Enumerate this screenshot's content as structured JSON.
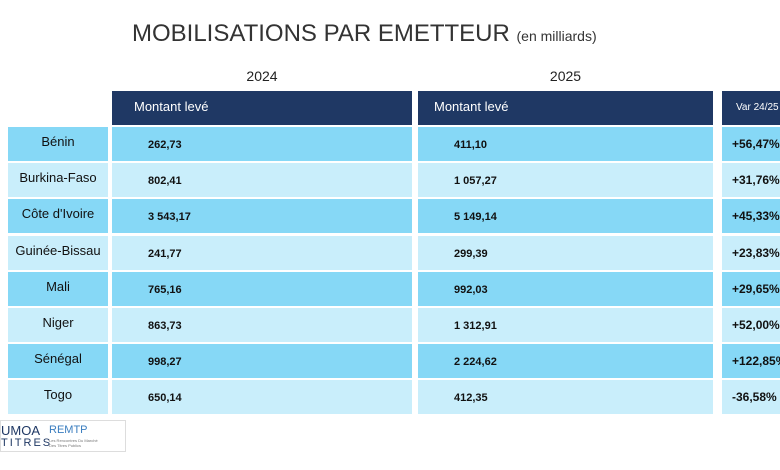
{
  "header": {
    "title": "MOBILISATIONS PAR EMETTEUR",
    "unit": "(en milliards)"
  },
  "table": {
    "years": [
      "2024",
      "2025"
    ],
    "columns": [
      "Montant levé",
      "Montant levé",
      "Var 24/25"
    ],
    "rows": [
      [
        "Bénin",
        "262,73",
        "411,10",
        "+56,47%"
      ],
      [
        "Burkina-Faso",
        "802,41",
        "1 057,27",
        "+31,76%"
      ],
      [
        "Côte d'Ivoire",
        "3 543,17",
        "5 149,14",
        "+45,33%"
      ],
      [
        "Guinée-Bissau",
        "241,77",
        "299,39",
        "+23,83%"
      ],
      [
        "Mali",
        "765,16",
        "992,03",
        "+29,65%"
      ],
      [
        "Niger",
        "863,73",
        "1 312,91",
        "+52,00%"
      ],
      [
        "Sénégal",
        "998,27",
        "2 224,62",
        "+122,85%"
      ],
      [
        "Togo",
        "650,14",
        "412,35",
        "-36,58%"
      ]
    ]
  },
  "logo": {
    "left": "UMOA",
    "left_sub": "TITRES",
    "right": "REMTP",
    "right_sub": "Les Rencontres Du Marché Des Titres Publics"
  }
}
